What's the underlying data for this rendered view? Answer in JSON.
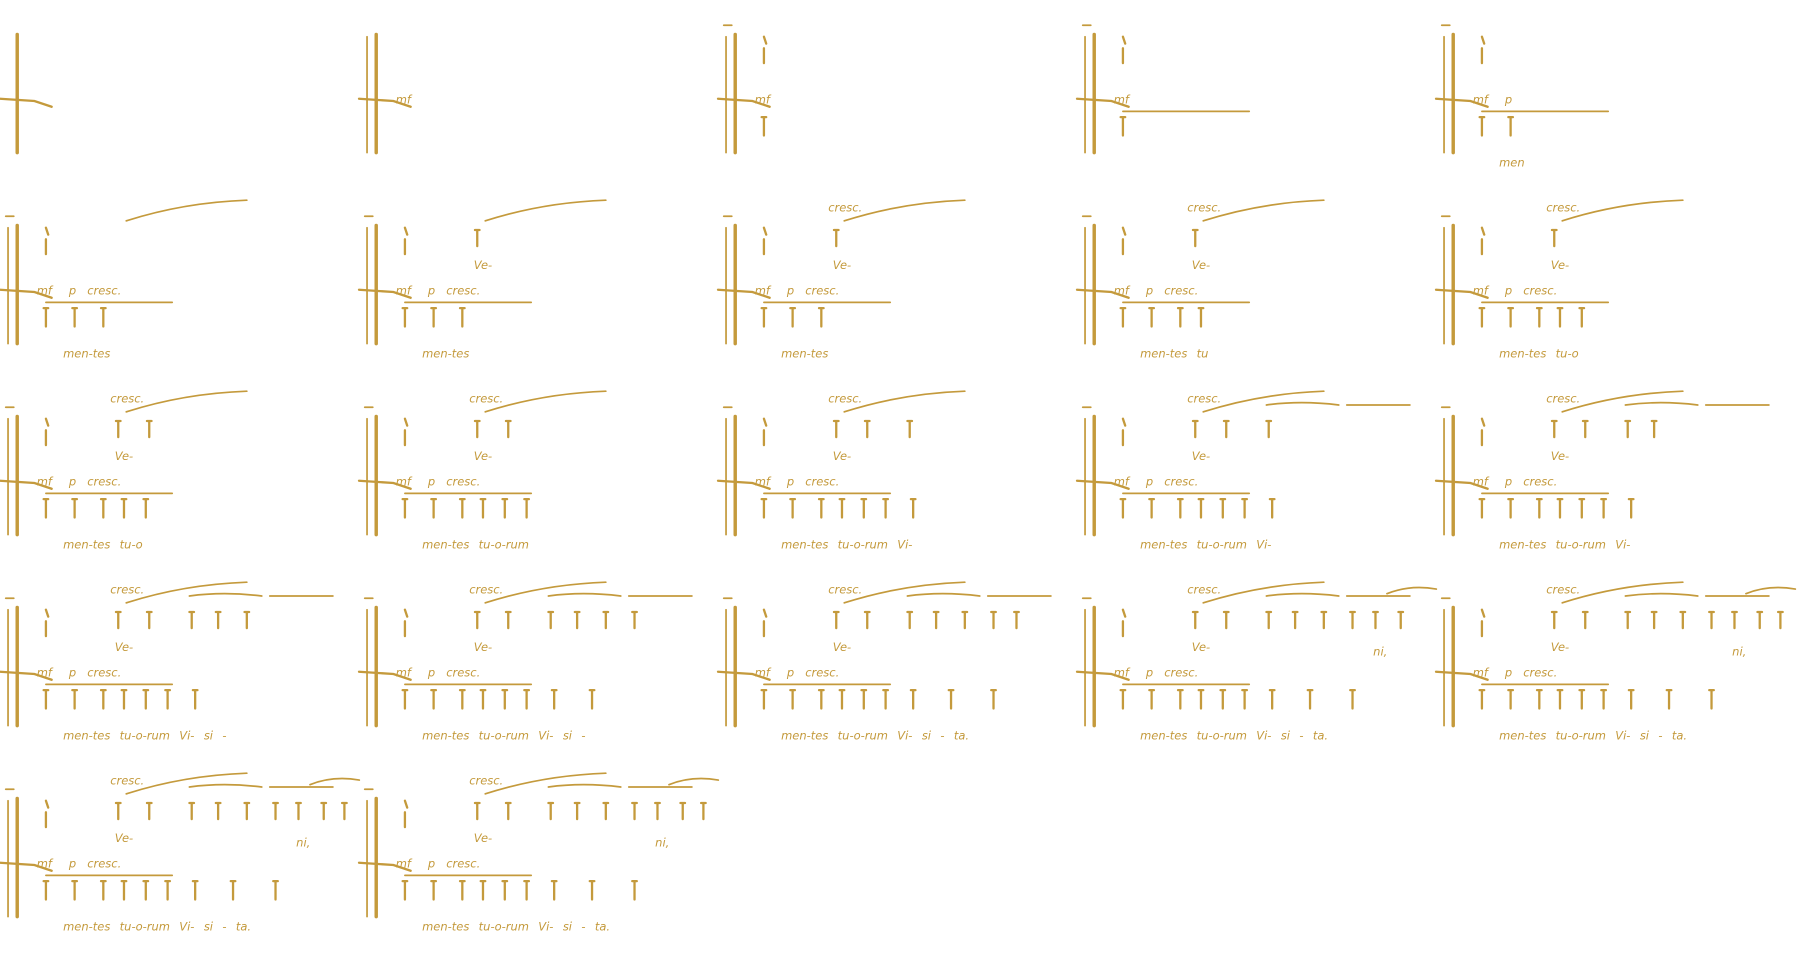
{
  "frames": [
    {},
    {
      "dynamics": [
        "mf"
      ]
    },
    {
      "dynamics": [
        "mf"
      ]
    },
    {
      "dynamics": [
        "mf"
      ]
    },
    {
      "dynamics": [
        "mf",
        "p"
      ],
      "lyrics": "men"
    },
    {
      "dynamics": [
        "mf",
        "p",
        "cresc."
      ],
      "lyrics": "men-tes"
    },
    {
      "dynamics": [
        "mf",
        "p",
        "cresc."
      ],
      "upper_lyric": "Ve-",
      "lyrics": "men-tes"
    },
    {
      "dynamics": [
        "mf",
        "p",
        "cresc."
      ],
      "upper_cresc": "cresc.",
      "upper_lyric": "Ve-",
      "lyrics": "men-tes"
    },
    {
      "dynamics": [
        "mf",
        "p",
        "cresc."
      ],
      "upper_cresc": "cresc.",
      "upper_lyric": "Ve-",
      "lyrics": "men-tes tu"
    },
    {
      "dynamics": [
        "mf",
        "p",
        "cresc."
      ],
      "upper_cresc": "cresc.",
      "upper_lyric": "Ve-",
      "lyrics": "men-tes tu-o"
    },
    {
      "dynamics": [
        "mf",
        "p",
        "cresc."
      ],
      "upper_cresc": "cresc.",
      "upper_lyric": "Ve-",
      "lyrics": "men-tes tu-o"
    },
    {
      "dynamics": [
        "mf",
        "p",
        "cresc."
      ],
      "upper_cresc": "cresc.",
      "upper_lyric": "Ve-",
      "lyrics": "men-tes tu-o-rum"
    },
    {
      "dynamics": [
        "mf",
        "p",
        "cresc."
      ],
      "upper_cresc": "cresc.",
      "upper_lyric": "Ve-",
      "lyrics": "men-tes tu-o-rum Vi-"
    },
    {
      "dynamics": [
        "mf",
        "p",
        "cresc."
      ],
      "upper_cresc": "cresc.",
      "upper_lyric": "Ve-",
      "lyrics": "men-tes tu-o-rum Vi-"
    },
    {
      "dynamics": [
        "mf",
        "p",
        "cresc."
      ],
      "upper_cresc": "cresc.",
      "upper_lyric": "Ve-",
      "lyrics": "men-tes tu-o-rum Vi-"
    },
    {
      "dynamics": [
        "mf",
        "p",
        "cresc."
      ],
      "upper_cresc": "cresc.",
      "upper_lyric": "Ve-",
      "lyrics": "men-tes tu-o-rum Vi- si -"
    },
    {
      "dynamics": [
        "mf",
        "p",
        "cresc."
      ],
      "upper_cresc": "cresc.",
      "upper_lyric": "Ve-",
      "lyrics": "men-tes tu-o-rum Vi- si -"
    },
    {
      "dynamics": [
        "mf",
        "p",
        "cresc."
      ],
      "upper_cresc": "cresc.",
      "upper_lyric": "Ve-",
      "lyrics": "men-tes tu-o-rum Vi- si - ta."
    },
    {
      "dynamics": [
        "mf",
        "p",
        "cresc."
      ],
      "upper_cresc": "cresc.",
      "upper_lyric": "Ve-",
      "upper_end": "ni,",
      "lyrics": "men-tes tu-o-rum Vi- si - ta."
    },
    {
      "dynamics": [
        "mf",
        "p",
        "cresc."
      ],
      "upper_cresc": "cresc.",
      "upper_lyric": "Ve-",
      "upper_end": "ni,",
      "lyrics": "men-tes tu-o-rum Vi- si - ta."
    },
    {
      "dynamics": [
        "mf",
        "p",
        "cresc."
      ],
      "upper_cresc": "cresc.",
      "upper_lyric": "Ve-",
      "upper_end": "ni,",
      "lyrics": "men-tes tu-o-rum Vi- si - ta."
    },
    {
      "dynamics": [
        "mf",
        "p",
        "cresc."
      ],
      "upper_cresc": "cresc.",
      "upper_lyric": "Ve-",
      "upper_end": "ni,",
      "lyrics": "men-tes tu-o-rum Vi- si - ta."
    }
  ]
}
